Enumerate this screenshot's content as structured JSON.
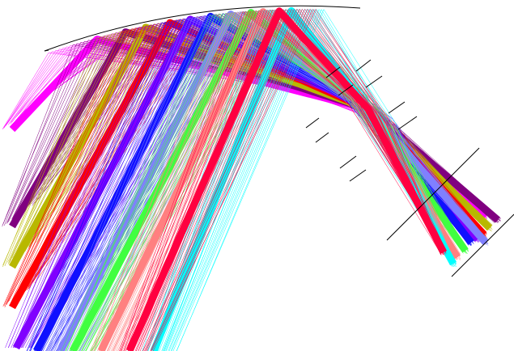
{
  "diagram": {
    "kind": "optical ray trace",
    "background": "#ffffff",
    "line_color": "#000000",
    "ray_colors": {
      "magenta": "#ff00ff",
      "purple": "#800080",
      "olive": "#b8b800",
      "red": "#ff0000",
      "violet": "#8000ff",
      "blue": "#1010ff",
      "periwinkle": "#8080ff",
      "green": "#40ff40",
      "salmon": "#ff8080",
      "cyan": "#00ffff",
      "crimson": "#ff0040"
    }
  }
}
